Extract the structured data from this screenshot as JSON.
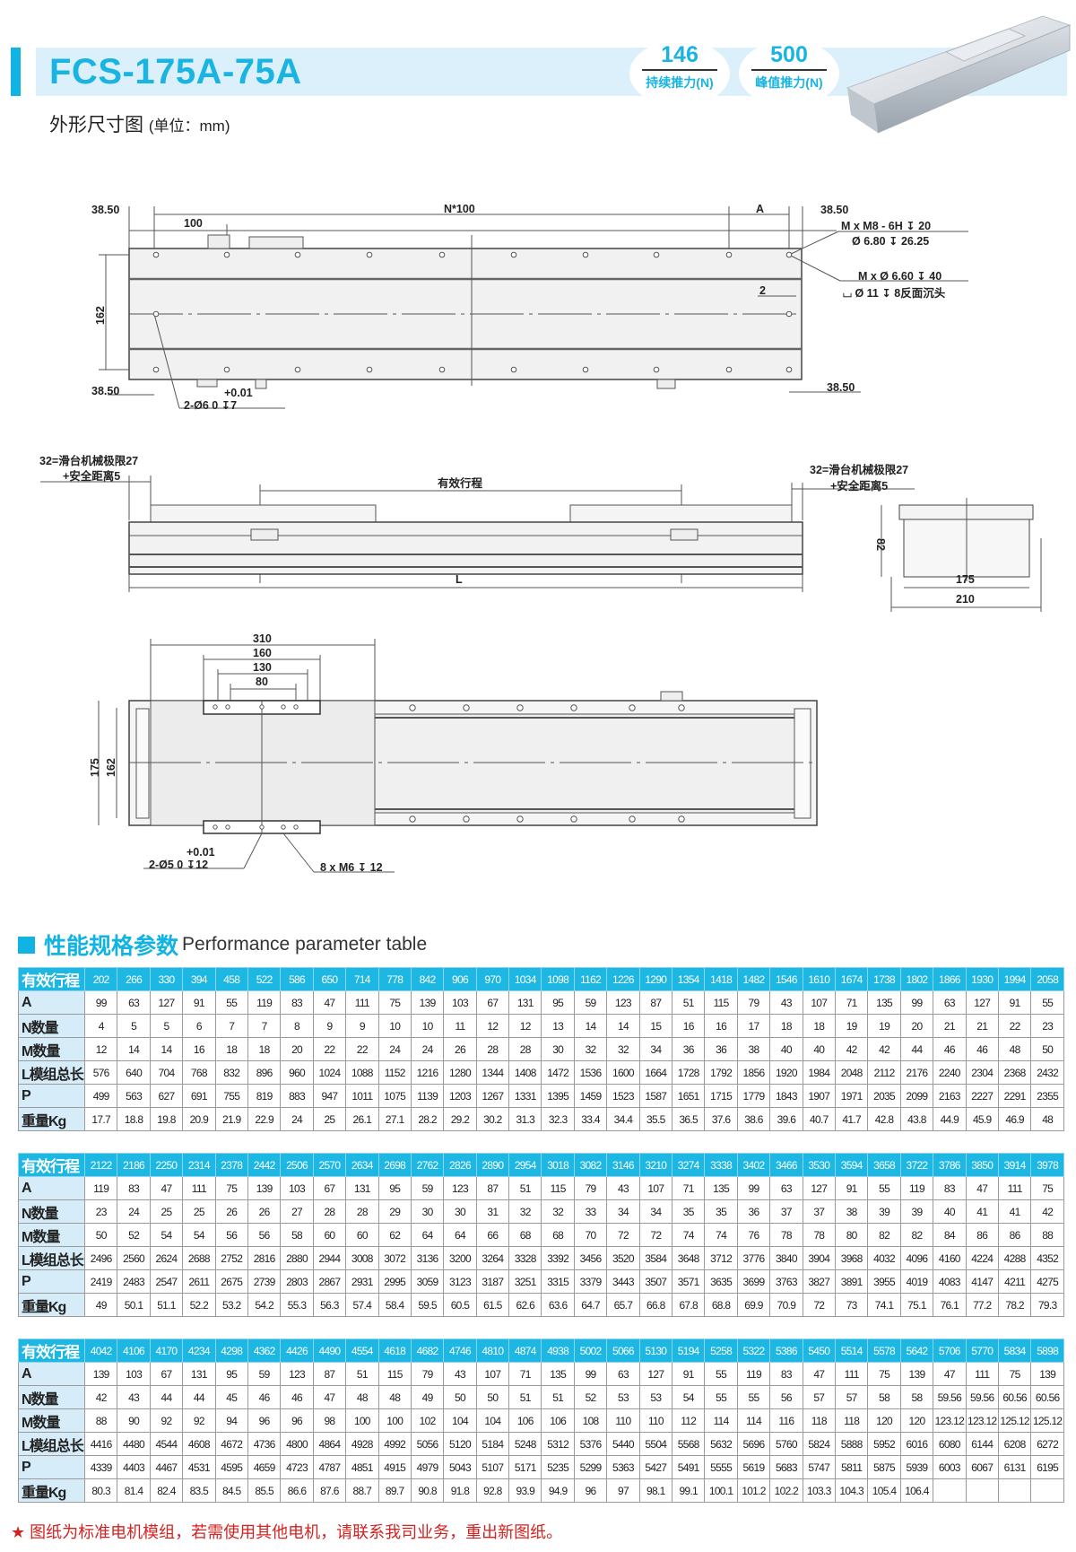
{
  "header": {
    "model": "FCS-175A-75A",
    "continuous_force": {
      "value": "146",
      "label": "持续推力(N)"
    },
    "peak_force": {
      "value": "500",
      "label": "峰值推力(N)"
    },
    "subtitle": "外形尺寸图",
    "unit": "(单位：mm)"
  },
  "colors": {
    "accent": "#1cb8e3",
    "label_bg": "#d6edf9",
    "note": "#d3221f"
  },
  "drawing_top": {
    "d_left_top": "38.50",
    "n100": "N*100",
    "a": "A",
    "d_right_top": "38.50",
    "pitch": "100",
    "height": "162",
    "d_left_bottom": "38.50",
    "d_right_bottom": "38.50",
    "tol_upper": "+0.01",
    "pin_hole": "2-Ø6   0    ↧7",
    "m_thread": "M x  M8 - 6H ↧ 20",
    "m_drill": "Ø 6.80 ↧ 26.25",
    "m_through": "M x  Ø 6.60 ↧ 40",
    "m_counterbore": "⌴  Ø 11 ↧ 8反面沉头",
    "offset": "2"
  },
  "drawing_side": {
    "left_limit": "32=滑台机械极限27",
    "left_safety": "+安全距离5",
    "right_limit": "32=滑台机械极限27",
    "right_safety": "+安全距离5",
    "stroke": "有效行程",
    "length": "L",
    "end_height": "82",
    "end_w1": "175",
    "end_w2": "210"
  },
  "drawing_bottom": {
    "w310": "310",
    "w160": "160",
    "w130": "130",
    "w80": "80",
    "h175": "175",
    "h162": "162",
    "tol_upper": "+0.01",
    "pin_hole": "2-Ø5   0    ↧12",
    "thread": "8 x  M6 ↧ 12"
  },
  "section": {
    "title_cn": "性能规格参数",
    "title_en": "Performance parameter table"
  },
  "tables": [
    {
      "header_label": "有效行程",
      "strokes": [
        "202",
        "266",
        "330",
        "394",
        "458",
        "522",
        "586",
        "650",
        "714",
        "778",
        "842",
        "906",
        "970",
        "1034",
        "1098",
        "1162",
        "1226",
        "1290",
        "1354",
        "1418",
        "1482",
        "1546",
        "1610",
        "1674",
        "1738",
        "1802",
        "1866",
        "1930",
        "1994",
        "2058"
      ],
      "rows": [
        {
          "label": "A",
          "values": [
            "99",
            "63",
            "127",
            "91",
            "55",
            "119",
            "83",
            "47",
            "111",
            "75",
            "139",
            "103",
            "67",
            "131",
            "95",
            "59",
            "123",
            "87",
            "51",
            "115",
            "79",
            "43",
            "107",
            "71",
            "135",
            "99",
            "63",
            "127",
            "91",
            "55"
          ]
        },
        {
          "label": "N数量",
          "values": [
            "4",
            "5",
            "5",
            "6",
            "7",
            "7",
            "8",
            "9",
            "9",
            "10",
            "10",
            "11",
            "12",
            "12",
            "13",
            "14",
            "14",
            "15",
            "16",
            "16",
            "17",
            "18",
            "18",
            "19",
            "19",
            "20",
            "21",
            "21",
            "22",
            "23"
          ]
        },
        {
          "label": "M数量",
          "values": [
            "12",
            "14",
            "14",
            "16",
            "18",
            "18",
            "20",
            "22",
            "22",
            "24",
            "24",
            "26",
            "28",
            "28",
            "30",
            "32",
            "32",
            "34",
            "36",
            "36",
            "38",
            "40",
            "40",
            "42",
            "42",
            "44",
            "46",
            "46",
            "48",
            "50"
          ]
        },
        {
          "label": "L模组总长",
          "values": [
            "576",
            "640",
            "704",
            "768",
            "832",
            "896",
            "960",
            "1024",
            "1088",
            "1152",
            "1216",
            "1280",
            "1344",
            "1408",
            "1472",
            "1536",
            "1600",
            "1664",
            "1728",
            "1792",
            "1856",
            "1920",
            "1984",
            "2048",
            "2112",
            "2176",
            "2240",
            "2304",
            "2368",
            "2432"
          ]
        },
        {
          "label": "P",
          "values": [
            "499",
            "563",
            "627",
            "691",
            "755",
            "819",
            "883",
            "947",
            "1011",
            "1075",
            "1139",
            "1203",
            "1267",
            "1331",
            "1395",
            "1459",
            "1523",
            "1587",
            "1651",
            "1715",
            "1779",
            "1843",
            "1907",
            "1971",
            "2035",
            "2099",
            "2163",
            "2227",
            "2291",
            "2355"
          ]
        },
        {
          "label": "重量Kg",
          "values": [
            "17.7",
            "18.8",
            "19.8",
            "20.9",
            "21.9",
            "22.9",
            "24",
            "25",
            "26.1",
            "27.1",
            "28.2",
            "29.2",
            "30.2",
            "31.3",
            "32.3",
            "33.4",
            "34.4",
            "35.5",
            "36.5",
            "37.6",
            "38.6",
            "39.6",
            "40.7",
            "41.7",
            "42.8",
            "43.8",
            "44.9",
            "45.9",
            "46.9",
            "48"
          ]
        }
      ]
    },
    {
      "header_label": "有效行程",
      "strokes": [
        "2122",
        "2186",
        "2250",
        "2314",
        "2378",
        "2442",
        "2506",
        "2570",
        "2634",
        "2698",
        "2762",
        "2826",
        "2890",
        "2954",
        "3018",
        "3082",
        "3146",
        "3210",
        "3274",
        "3338",
        "3402",
        "3466",
        "3530",
        "3594",
        "3658",
        "3722",
        "3786",
        "3850",
        "3914",
        "3978"
      ],
      "rows": [
        {
          "label": "A",
          "values": [
            "119",
            "83",
            "47",
            "111",
            "75",
            "139",
            "103",
            "67",
            "131",
            "95",
            "59",
            "123",
            "87",
            "51",
            "115",
            "79",
            "43",
            "107",
            "71",
            "135",
            "99",
            "63",
            "127",
            "91",
            "55",
            "119",
            "83",
            "47",
            "111",
            "75"
          ]
        },
        {
          "label": "N数量",
          "values": [
            "23",
            "24",
            "25",
            "25",
            "26",
            "26",
            "27",
            "28",
            "28",
            "29",
            "30",
            "30",
            "31",
            "32",
            "32",
            "33",
            "34",
            "34",
            "35",
            "35",
            "36",
            "37",
            "37",
            "38",
            "39",
            "39",
            "40",
            "41",
            "41",
            "42"
          ]
        },
        {
          "label": "M数量",
          "values": [
            "50",
            "52",
            "54",
            "54",
            "56",
            "56",
            "58",
            "60",
            "60",
            "62",
            "64",
            "64",
            "66",
            "68",
            "68",
            "70",
            "72",
            "72",
            "74",
            "74",
            "76",
            "78",
            "78",
            "80",
            "82",
            "82",
            "84",
            "86",
            "86",
            "88"
          ]
        },
        {
          "label": "L模组总长",
          "values": [
            "2496",
            "2560",
            "2624",
            "2688",
            "2752",
            "2816",
            "2880",
            "2944",
            "3008",
            "3072",
            "3136",
            "3200",
            "3264",
            "3328",
            "3392",
            "3456",
            "3520",
            "3584",
            "3648",
            "3712",
            "3776",
            "3840",
            "3904",
            "3968",
            "4032",
            "4096",
            "4160",
            "4224",
            "4288",
            "4352"
          ]
        },
        {
          "label": "P",
          "values": [
            "2419",
            "2483",
            "2547",
            "2611",
            "2675",
            "2739",
            "2803",
            "2867",
            "2931",
            "2995",
            "3059",
            "3123",
            "3187",
            "3251",
            "3315",
            "3379",
            "3443",
            "3507",
            "3571",
            "3635",
            "3699",
            "3763",
            "3827",
            "3891",
            "3955",
            "4019",
            "4083",
            "4147",
            "4211",
            "4275"
          ]
        },
        {
          "label": "重量Kg",
          "values": [
            "49",
            "50.1",
            "51.1",
            "52.2",
            "53.2",
            "54.2",
            "55.3",
            "56.3",
            "57.4",
            "58.4",
            "59.5",
            "60.5",
            "61.5",
            "62.6",
            "63.6",
            "64.7",
            "65.7",
            "66.8",
            "67.8",
            "68.8",
            "69.9",
            "70.9",
            "72",
            "73",
            "74.1",
            "75.1",
            "76.1",
            "77.2",
            "78.2",
            "79.3"
          ]
        }
      ]
    },
    {
      "header_label": "有效行程",
      "strokes": [
        "4042",
        "4106",
        "4170",
        "4234",
        "4298",
        "4362",
        "4426",
        "4490",
        "4554",
        "4618",
        "4682",
        "4746",
        "4810",
        "4874",
        "4938",
        "5002",
        "5066",
        "5130",
        "5194",
        "5258",
        "5322",
        "5386",
        "5450",
        "5514",
        "5578",
        "5642",
        "5706",
        "5770",
        "5834",
        "5898"
      ],
      "rows": [
        {
          "label": "A",
          "values": [
            "139",
            "103",
            "67",
            "131",
            "95",
            "59",
            "123",
            "87",
            "51",
            "115",
            "79",
            "43",
            "107",
            "71",
            "135",
            "99",
            "63",
            "127",
            "91",
            "55",
            "119",
            "83",
            "47",
            "111",
            "75",
            "139",
            "47",
            "111",
            "75",
            "139"
          ]
        },
        {
          "label": "N数量",
          "values": [
            "42",
            "43",
            "44",
            "44",
            "45",
            "46",
            "46",
            "47",
            "48",
            "48",
            "49",
            "50",
            "50",
            "51",
            "51",
            "52",
            "53",
            "53",
            "54",
            "55",
            "55",
            "56",
            "57",
            "57",
            "58",
            "58",
            "59.56",
            "59.56",
            "60.56",
            "60.56"
          ]
        },
        {
          "label": "M数量",
          "values": [
            "88",
            "90",
            "92",
            "92",
            "94",
            "96",
            "96",
            "98",
            "100",
            "100",
            "102",
            "104",
            "104",
            "106",
            "106",
            "108",
            "110",
            "110",
            "112",
            "114",
            "114",
            "116",
            "118",
            "118",
            "120",
            "120",
            "123.12",
            "123.12",
            "125.12",
            "125.12"
          ]
        },
        {
          "label": "L模组总长",
          "values": [
            "4416",
            "4480",
            "4544",
            "4608",
            "4672",
            "4736",
            "4800",
            "4864",
            "4928",
            "4992",
            "5056",
            "5120",
            "5184",
            "5248",
            "5312",
            "5376",
            "5440",
            "5504",
            "5568",
            "5632",
            "5696",
            "5760",
            "5824",
            "5888",
            "5952",
            "6016",
            "6080",
            "6144",
            "6208",
            "6272"
          ]
        },
        {
          "label": "P",
          "values": [
            "4339",
            "4403",
            "4467",
            "4531",
            "4595",
            "4659",
            "4723",
            "4787",
            "4851",
            "4915",
            "4979",
            "5043",
            "5107",
            "5171",
            "5235",
            "5299",
            "5363",
            "5427",
            "5491",
            "5555",
            "5619",
            "5683",
            "5747",
            "5811",
            "5875",
            "5939",
            "6003",
            "6067",
            "6131",
            "6195"
          ]
        },
        {
          "label": "重量Kg",
          "values": [
            "80.3",
            "81.4",
            "82.4",
            "83.5",
            "84.5",
            "85.5",
            "86.6",
            "87.6",
            "88.7",
            "89.7",
            "90.8",
            "91.8",
            "92.8",
            "93.9",
            "94.9",
            "96",
            "97",
            "98.1",
            "99.1",
            "100.1",
            "101.2",
            "102.2",
            "103.3",
            "104.3",
            "105.4",
            "106.4",
            "",
            "",
            "",
            ""
          ]
        }
      ]
    }
  ],
  "footer": {
    "star": "★",
    "note": "图纸为标准电机模组，若需使用其他电机，请联系我司业务，重出新图纸。"
  }
}
